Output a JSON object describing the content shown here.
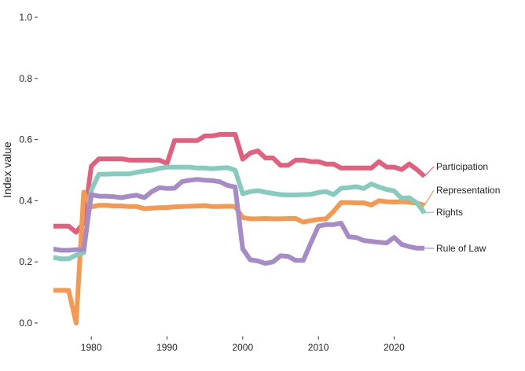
{
  "chart_data": {
    "type": "line",
    "ylabel": "Index value",
    "xlabel": "",
    "ylim": [
      0,
      1
    ],
    "xlim": [
      1975,
      2024
    ],
    "y_ticks": [
      0.0,
      0.2,
      0.4,
      0.6,
      0.8,
      1.0
    ],
    "y_tick_labels": [
      "0.0",
      "0.2",
      "0.4",
      "0.6",
      "0.8",
      "1.0"
    ],
    "x_ticks": [
      1980,
      1990,
      2000,
      2010,
      2020
    ],
    "x_tick_labels": [
      "1980",
      "1990",
      "2000",
      "2010",
      "2020"
    ],
    "grid": false,
    "legend": "direct labels at line ends",
    "x": [
      1975,
      1976,
      1977,
      1978,
      1979,
      1980,
      1981,
      1982,
      1983,
      1984,
      1985,
      1986,
      1987,
      1988,
      1989,
      1990,
      1991,
      1992,
      1993,
      1994,
      1995,
      1996,
      1997,
      1998,
      1999,
      2000,
      2001,
      2002,
      2003,
      2004,
      2005,
      2006,
      2007,
      2008,
      2009,
      2010,
      2011,
      2012,
      2013,
      2014,
      2015,
      2016,
      2017,
      2018,
      2019,
      2020,
      2021,
      2022,
      2023,
      2024
    ],
    "series": [
      {
        "name": "Participation",
        "color": "#E0607E",
        "values": [
          0.317,
          0.317,
          0.317,
          0.297,
          0.327,
          0.513,
          0.537,
          0.537,
          0.537,
          0.537,
          0.533,
          0.533,
          0.533,
          0.533,
          0.533,
          0.522,
          0.597,
          0.597,
          0.597,
          0.597,
          0.612,
          0.612,
          0.617,
          0.617,
          0.617,
          0.536,
          0.556,
          0.563,
          0.54,
          0.54,
          0.516,
          0.516,
          0.533,
          0.533,
          0.528,
          0.528,
          0.52,
          0.52,
          0.507,
          0.507,
          0.507,
          0.507,
          0.507,
          0.528,
          0.51,
          0.51,
          0.502,
          0.52,
          0.502,
          0.48
        ]
      },
      {
        "name": "Representation",
        "color": "#F59850",
        "values": [
          0.107,
          0.107,
          0.107,
          0.0,
          0.428,
          0.38,
          0.385,
          0.385,
          0.383,
          0.383,
          0.381,
          0.381,
          0.374,
          0.376,
          0.377,
          0.378,
          0.38,
          0.381,
          0.382,
          0.383,
          0.384,
          0.381,
          0.381,
          0.382,
          0.381,
          0.345,
          0.341,
          0.341,
          0.342,
          0.341,
          0.341,
          0.342,
          0.342,
          0.33,
          0.335,
          0.339,
          0.341,
          0.365,
          0.394,
          0.394,
          0.393,
          0.393,
          0.386,
          0.4,
          0.397,
          0.396,
          0.397,
          0.395,
          0.392,
          0.385
        ]
      },
      {
        "name": "Rights",
        "color": "#86CBBE",
        "values": [
          0.215,
          0.21,
          0.21,
          0.222,
          0.23,
          0.435,
          0.487,
          0.487,
          0.488,
          0.488,
          0.488,
          0.493,
          0.497,
          0.5,
          0.506,
          0.51,
          0.51,
          0.51,
          0.51,
          0.507,
          0.507,
          0.505,
          0.507,
          0.508,
          0.5,
          0.423,
          0.43,
          0.433,
          0.428,
          0.424,
          0.42,
          0.419,
          0.419,
          0.42,
          0.421,
          0.427,
          0.43,
          0.42,
          0.441,
          0.443,
          0.446,
          0.44,
          0.455,
          0.445,
          0.437,
          0.432,
          0.408,
          0.41,
          0.393,
          0.36
        ]
      },
      {
        "name": "Rule of Law",
        "color": "#A68BC6",
        "values": [
          0.242,
          0.238,
          0.238,
          0.24,
          0.24,
          0.42,
          0.415,
          0.415,
          0.413,
          0.41,
          0.415,
          0.418,
          0.41,
          0.43,
          0.443,
          0.44,
          0.441,
          0.463,
          0.467,
          0.47,
          0.467,
          0.466,
          0.462,
          0.45,
          0.445,
          0.243,
          0.207,
          0.203,
          0.195,
          0.2,
          0.22,
          0.218,
          0.205,
          0.205,
          0.262,
          0.317,
          0.322,
          0.322,
          0.327,
          0.282,
          0.28,
          0.27,
          0.267,
          0.264,
          0.262,
          0.28,
          0.257,
          0.25,
          0.245,
          0.245
        ]
      }
    ]
  }
}
